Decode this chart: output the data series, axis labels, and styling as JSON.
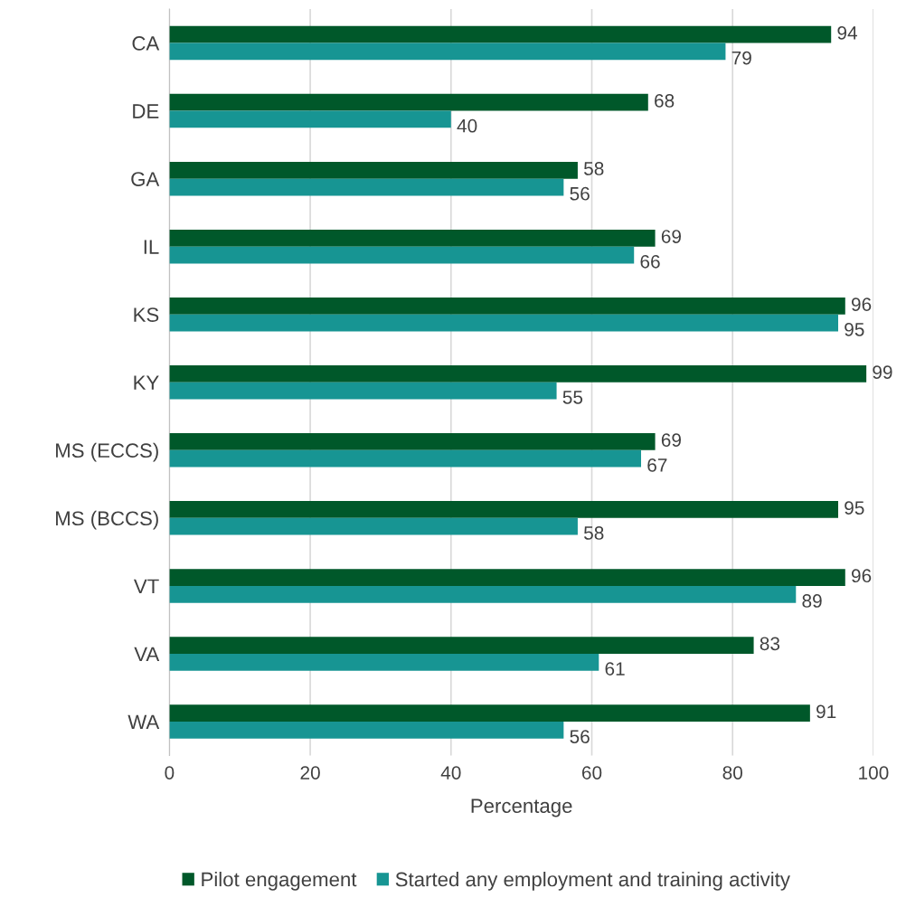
{
  "chart_data": {
    "type": "bar",
    "orientation": "horizontal",
    "xlabel": "Percentage",
    "categories": [
      "CA",
      "DE",
      "GA",
      "IL",
      "KS",
      "KY",
      "MS (ECCS)",
      "MS (BCCS)",
      "VT",
      "VA",
      "WA"
    ],
    "series": [
      {
        "name": "Pilot engagement",
        "color": "#00582a",
        "values": [
          94,
          68,
          58,
          69,
          96,
          99,
          69,
          95,
          96,
          83,
          91
        ]
      },
      {
        "name": "Started any employment and training activity",
        "color": "#179593",
        "values": [
          79,
          40,
          56,
          66,
          95,
          55,
          67,
          58,
          89,
          61,
          56
        ]
      }
    ],
    "xlim": [
      0,
      100
    ],
    "xticks": [
      0,
      20,
      40,
      60,
      80,
      100
    ],
    "grid": "x",
    "legend": "bottom",
    "data_labels": true
  }
}
